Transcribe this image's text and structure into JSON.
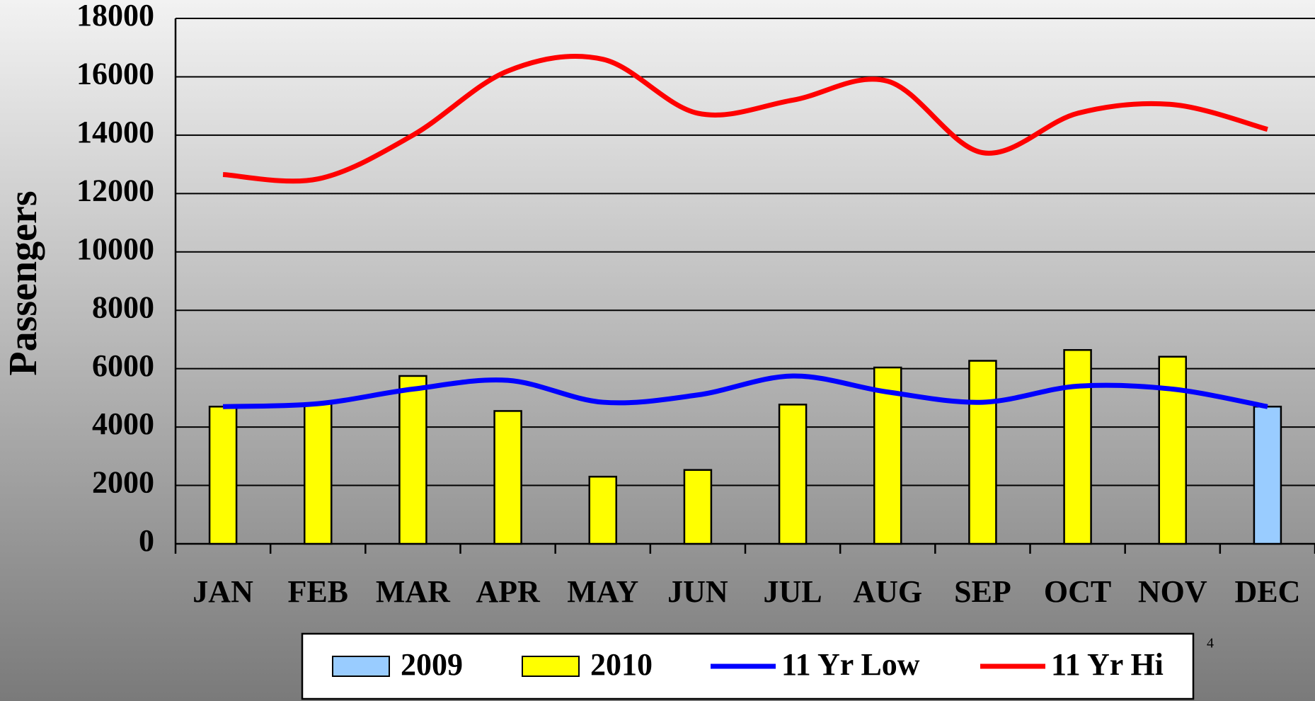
{
  "chart_data": {
    "type": "bar",
    "ylabel": "Passengers",
    "categories": [
      "JAN",
      "FEB",
      "MAR",
      "APR",
      "MAY",
      "JUN",
      "JUL",
      "AUG",
      "SEP",
      "OCT",
      "NOV",
      "DEC"
    ],
    "series": [
      {
        "name": "2009",
        "type": "bar",
        "color": "#99ccff",
        "values": [
          null,
          null,
          null,
          null,
          null,
          null,
          null,
          null,
          null,
          null,
          null,
          4700
        ]
      },
      {
        "name": "2010",
        "type": "bar",
        "color": "#ffff00",
        "values": [
          4700,
          4800,
          5750,
          4550,
          2300,
          2530,
          4770,
          6040,
          6270,
          6640,
          6410,
          null
        ]
      },
      {
        "name": "11 Yr Low",
        "type": "line",
        "color": "#0000ff",
        "values": [
          4700,
          4800,
          5300,
          5600,
          4850,
          5100,
          5750,
          5200,
          4850,
          5400,
          5300,
          4700
        ]
      },
      {
        "name": "11 Yr Hi",
        "type": "line",
        "color": "#ff0000",
        "values": [
          12650,
          12500,
          14000,
          16200,
          16600,
          14750,
          15200,
          15850,
          13400,
          14750,
          15050,
          14200
        ]
      }
    ],
    "ylim": [
      0,
      18000
    ],
    "yticks": [
      0,
      2000,
      4000,
      6000,
      8000,
      10000,
      12000,
      14000,
      16000,
      18000
    ],
    "grid": true,
    "legend": "bottom",
    "page_number": "4"
  }
}
